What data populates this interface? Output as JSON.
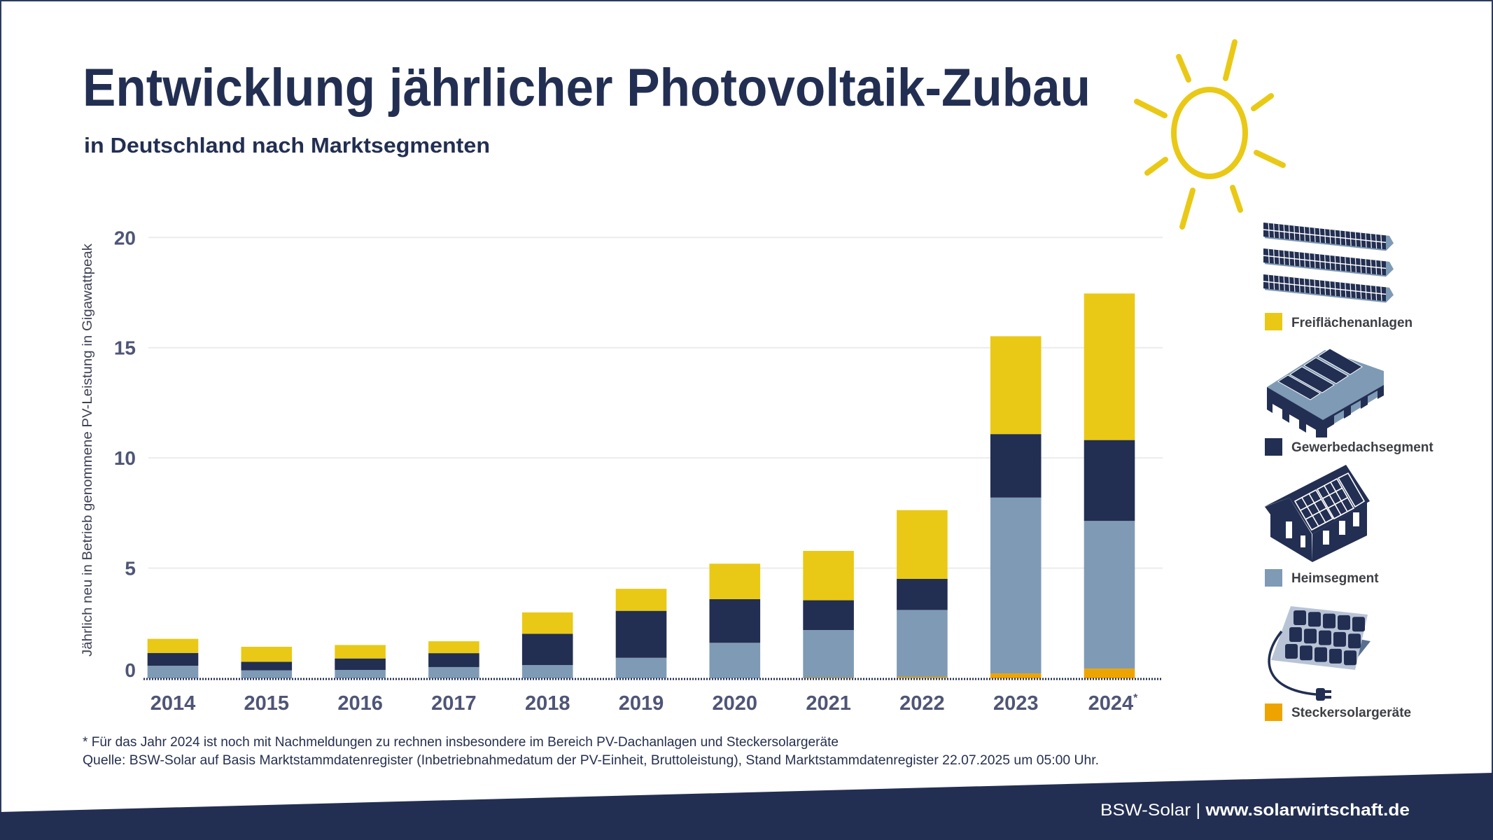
{
  "header": {
    "title": "Entwicklung jährlicher Photovoltaik-Zubau",
    "subtitle": "in Deutschland nach Marktsegmenten",
    "sun_icon": "sun-icon"
  },
  "colors": {
    "navy": "#222f52",
    "freiflaechen": "#e9c915",
    "gewerbe": "#222f52",
    "heim": "#7f9ab5",
    "stecker": "#eea400",
    "sun": "#e9c915",
    "grid": "#ececec"
  },
  "chart_data": {
    "type": "bar",
    "stacked": true,
    "title": "Entwicklung jährlicher Photovoltaik-Zubau",
    "subtitle": "in Deutschland nach Marktsegmenten",
    "xlabel": "",
    "ylabel": "Jährlich neu in Betrieb genommene PV-Leistung in Gigawattpeak",
    "ylim": [
      0,
      20
    ],
    "yticks": [
      "0",
      "5",
      "10",
      "15",
      "20"
    ],
    "grid": true,
    "legend_position": "right",
    "categories": [
      "2014",
      "2015",
      "2016",
      "2017",
      "2018",
      "2019",
      "2020",
      "2021",
      "2022",
      "2023",
      "2024"
    ],
    "category_marks": [
      "",
      "",
      "",
      "",
      "",
      "",
      "",
      "",
      "",
      "",
      "*"
    ],
    "series": [
      {
        "name": "Steckersolargeräte",
        "color": "#eea400",
        "icon": "plug-in-solar-panel-icon",
        "values": [
          0,
          0,
          0,
          0,
          0,
          0,
          0,
          0.03,
          0.06,
          0.22,
          0.44
        ]
      },
      {
        "name": "Heimsegment",
        "color": "#7f9ab5",
        "icon": "house-solar-roof-icon",
        "values": [
          0.57,
          0.36,
          0.38,
          0.51,
          0.6,
          0.93,
          1.61,
          2.16,
          3.04,
          7.98,
          6.7
        ]
      },
      {
        "name": "Gewerbedachsegment",
        "color": "#222f52",
        "icon": "commercial-roof-solar-icon",
        "values": [
          0.58,
          0.39,
          0.52,
          0.63,
          1.42,
          2.13,
          1.98,
          1.35,
          1.41,
          2.88,
          3.67
        ]
      },
      {
        "name": "Freiflächenanlagen",
        "color": "#e9c915",
        "icon": "ground-mounted-solar-icon",
        "values": [
          0.64,
          0.68,
          0.61,
          0.54,
          0.97,
          1.0,
          1.61,
          2.24,
          3.12,
          4.44,
          6.65
        ]
      }
    ],
    "legend_order": [
      "Freiflächenanlagen",
      "Gewerbedachsegment",
      "Heimsegment",
      "Steckersolargeräte"
    ]
  },
  "footnote": {
    "line1": "* Für das Jahr 2024 ist noch mit Nachmeldungen zu rechnen insbesondere im Bereich PV-Dachanlagen und Steckersolargeräte",
    "line2": "Quelle: BSW-Solar auf Basis Marktstammdatenregister (Inbetriebnahmedatum der PV-Einheit, Bruttoleistung), Stand Marktstammdatenregister 22.07.2025 um 05:00 Uhr."
  },
  "footer": {
    "org": "BSW-Solar",
    "separator": " | ",
    "url": "www.solarwirtschaft.de"
  }
}
